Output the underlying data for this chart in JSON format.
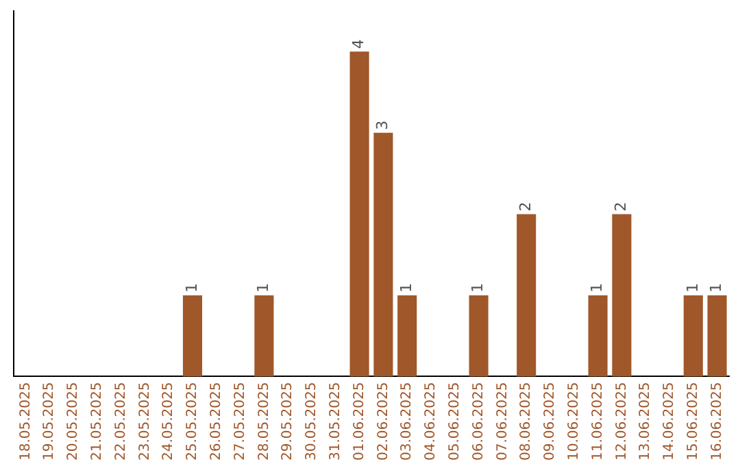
{
  "chart_data": {
    "type": "bar",
    "categories": [
      "18.05.2025",
      "19.05.2025",
      "20.05.2025",
      "21.05.2025",
      "22.05.2025",
      "23.05.2025",
      "24.05.2025",
      "25.05.2025",
      "26.05.2025",
      "27.05.2025",
      "28.05.2025",
      "29.05.2025",
      "30.05.2025",
      "31.05.2025",
      "01.06.2025",
      "02.06.2025",
      "03.06.2025",
      "04.06.2025",
      "05.06.2025",
      "06.06.2025",
      "07.06.2025",
      "08.06.2025",
      "09.06.2025",
      "10.06.2025",
      "11.06.2025",
      "12.06.2025",
      "13.06.2025",
      "14.06.2025",
      "15.06.2025",
      "16.06.2025"
    ],
    "values": [
      0,
      0,
      0,
      0,
      0,
      0,
      0,
      1,
      0,
      0,
      1,
      0,
      0,
      0,
      4,
      3,
      1,
      0,
      0,
      1,
      0,
      2,
      0,
      0,
      1,
      2,
      0,
      0,
      1,
      1
    ],
    "value_labels": [
      null,
      null,
      null,
      null,
      null,
      null,
      null,
      "1",
      null,
      null,
      "1",
      null,
      null,
      null,
      "4",
      "3",
      "1",
      null,
      null,
      "1",
      null,
      "2",
      null,
      null,
      "1",
      "2",
      null,
      null,
      "1",
      "1"
    ],
    "color": "#a0572a",
    "grid": false,
    "legend": false,
    "tick_labels": "x"
  }
}
